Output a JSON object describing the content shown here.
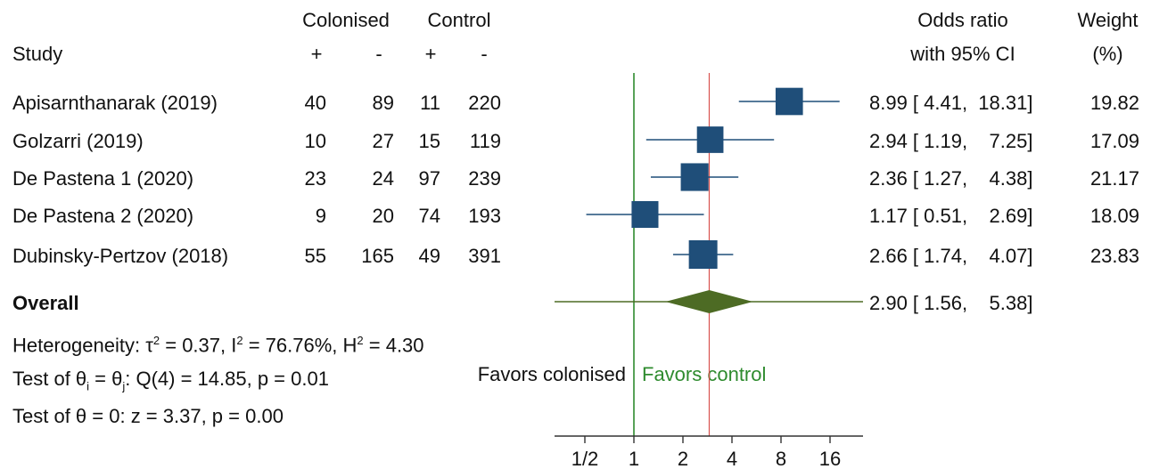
{
  "header": {
    "study": "Study",
    "colonised": "Colonised",
    "control": "Control",
    "plus": "+",
    "minus": "-",
    "or_line1": "Odds ratio",
    "or_line2": "with 95% CI",
    "weight_line1": "Weight",
    "weight_line2": "(%)"
  },
  "studies": [
    {
      "name": "Apisarnthanarak  (2019)",
      "col_pos": "40",
      "col_neg": "89",
      "ctl_pos": "11",
      "ctl_neg": "220",
      "or": 8.99,
      "lo": 4.41,
      "hi": 18.31,
      "ci_text": "8.99 [ 4.41,  18.31]",
      "weight_text": "19.82"
    },
    {
      "name": "Golzarri  (2019)",
      "col_pos": "10",
      "col_neg": "27",
      "ctl_pos": "15",
      "ctl_neg": "119",
      "or": 2.94,
      "lo": 1.19,
      "hi": 7.25,
      "ci_text": "2.94 [ 1.19,    7.25]",
      "weight_text": "17.09"
    },
    {
      "name": "De Pastena 1 (2020)",
      "col_pos": "23",
      "col_neg": "24",
      "ctl_pos": "97",
      "ctl_neg": "239",
      "or": 2.36,
      "lo": 1.27,
      "hi": 4.38,
      "ci_text": "2.36 [ 1.27,    4.38]",
      "weight_text": "21.17"
    },
    {
      "name": "De Pastena 2 (2020)",
      "col_pos": "9",
      "col_neg": "20",
      "ctl_pos": "74",
      "ctl_neg": "193",
      "or": 1.17,
      "lo": 0.51,
      "hi": 2.69,
      "ci_text": "1.17 [ 0.51,    2.69]",
      "weight_text": "18.09"
    },
    {
      "name": "Dubinsky-Pertzov (2018)",
      "col_pos": "55",
      "col_neg": "165",
      "ctl_pos": "49",
      "ctl_neg": "391",
      "or": 2.66,
      "lo": 1.74,
      "hi": 4.07,
      "ci_text": "2.66 [ 1.74,    4.07]",
      "weight_text": "23.83"
    }
  ],
  "overall": {
    "label": "Overall",
    "or": 2.9,
    "lo": 1.56,
    "hi": 5.38,
    "ci_text": "2.90 [ 1.56,    5.38]"
  },
  "stats": {
    "heterogeneity_prefix": "Heterogeneity: τ",
    "heterogeneity_mid1": " = 0.37, I",
    "heterogeneity_mid2": " = 76.76%, H",
    "heterogeneity_tail": " = 4.30",
    "sq": "2",
    "test_theta_i_prefix": "Test of θ",
    "sub_i": "i",
    "eq": " = θ",
    "sub_j": "j",
    "test_theta_i_tail": ": Q(4) = 14.85, p = 0.01",
    "test_theta_zero": "Test of θ = 0: z = 3.37, p = 0.00"
  },
  "labels": {
    "favors_colonised": "Favors colonised",
    "favors_control": "Favors control"
  },
  "chart_data": {
    "type": "forest",
    "x_scale": "log2",
    "xlim": [
      0.36,
      22
    ],
    "xticks": [
      0.5,
      1,
      2,
      4,
      8,
      16
    ],
    "xtick_labels": [
      "1/2",
      "1",
      "2",
      "4",
      "8",
      "16"
    ],
    "null_line": 1,
    "overall_line": 2.9,
    "estimates": [
      8.99,
      2.94,
      2.36,
      1.17,
      2.66
    ],
    "ci_low": [
      4.41,
      1.19,
      1.27,
      0.51,
      1.74
    ],
    "ci_high": [
      18.31,
      7.25,
      4.38,
      2.69,
      4.07
    ],
    "weights": [
      19.82,
      17.09,
      21.17,
      18.09,
      23.83
    ],
    "overall": {
      "estimate": 2.9,
      "ci_low": 1.56,
      "ci_high": 5.38
    },
    "colors": {
      "marker": "#1f4e79",
      "ci": "#1f4e79",
      "diamond": "#4d6b24",
      "null_line": "#2e8b2e",
      "overall_line": "#d9534f",
      "favors_control": "#2e8b2e"
    }
  }
}
